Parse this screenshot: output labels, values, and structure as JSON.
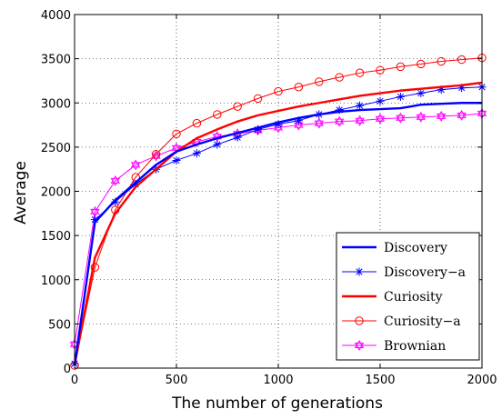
{
  "chart_data": {
    "type": "line",
    "title": "",
    "xlabel": "The number of generations",
    "ylabel": "Average",
    "xlim": [
      0,
      2000
    ],
    "ylim": [
      0,
      4000
    ],
    "xticks": [
      0,
      500,
      1000,
      1500,
      2000
    ],
    "yticks": [
      0,
      500,
      1000,
      1500,
      2000,
      2500,
      3000,
      3500,
      4000
    ],
    "xtick_labels": [
      "0",
      "500",
      "1000",
      "1500",
      "2000"
    ],
    "ytick_labels": [
      "0",
      "500",
      "1000",
      "1500",
      "2000",
      "2500",
      "3000",
      "3500",
      "4000"
    ],
    "grid": true,
    "legend_position": "bottom-right",
    "series": [
      {
        "name": "Discovery",
        "color": "#0000ff",
        "marker": "none",
        "linewidth": 2.4,
        "x": [
          0,
          100,
          200,
          300,
          400,
          500,
          600,
          700,
          800,
          900,
          1000,
          1100,
          1200,
          1300,
          1400,
          1500,
          1600,
          1650,
          1700,
          1800,
          1900,
          2000
        ],
        "y": [
          30,
          1650,
          1900,
          2100,
          2300,
          2450,
          2530,
          2600,
          2660,
          2720,
          2780,
          2830,
          2870,
          2900,
          2920,
          2930,
          2940,
          2960,
          2980,
          2990,
          3000,
          3000
        ]
      },
      {
        "name": "Discovery−a",
        "color": "#0000ff",
        "marker": "star",
        "linewidth": 1,
        "x": [
          0,
          100,
          200,
          300,
          400,
          500,
          600,
          700,
          800,
          900,
          1000,
          1100,
          1200,
          1300,
          1400,
          1500,
          1600,
          1700,
          1800,
          1900,
          2000
        ],
        "y": [
          50,
          1680,
          1880,
          2080,
          2250,
          2350,
          2430,
          2530,
          2610,
          2700,
          2760,
          2800,
          2870,
          2920,
          2970,
          3020,
          3070,
          3110,
          3150,
          3170,
          3180
        ]
      },
      {
        "name": "Curiosity",
        "color": "#ff0000",
        "marker": "none",
        "linewidth": 2.4,
        "x": [
          0,
          100,
          200,
          300,
          400,
          500,
          600,
          700,
          800,
          900,
          1000,
          1100,
          1200,
          1300,
          1400,
          1500,
          1600,
          1700,
          1800,
          1900,
          2000
        ],
        "y": [
          30,
          1250,
          1750,
          2050,
          2250,
          2450,
          2600,
          2700,
          2790,
          2860,
          2910,
          2960,
          3000,
          3040,
          3080,
          3110,
          3140,
          3160,
          3180,
          3200,
          3230
        ]
      },
      {
        "name": "Curiosity−a",
        "color": "#ff0000",
        "marker": "circle",
        "linewidth": 1,
        "x": [
          0,
          100,
          200,
          300,
          400,
          500,
          600,
          700,
          800,
          900,
          1000,
          1100,
          1200,
          1300,
          1400,
          1500,
          1600,
          1700,
          1800,
          1900,
          2000
        ],
        "y": [
          30,
          1140,
          1790,
          2160,
          2420,
          2650,
          2770,
          2870,
          2960,
          3050,
          3130,
          3180,
          3240,
          3290,
          3340,
          3370,
          3410,
          3440,
          3470,
          3490,
          3510
        ]
      },
      {
        "name": "Brownian",
        "color": "#ff00ff",
        "marker": "hexagram",
        "linewidth": 1,
        "x": [
          0,
          100,
          200,
          300,
          400,
          500,
          600,
          700,
          800,
          900,
          1000,
          1100,
          1200,
          1300,
          1400,
          1500,
          1600,
          1700,
          1800,
          1900,
          2000
        ],
        "y": [
          270,
          1770,
          2120,
          2300,
          2400,
          2490,
          2560,
          2620,
          2650,
          2690,
          2720,
          2750,
          2770,
          2790,
          2800,
          2820,
          2830,
          2840,
          2850,
          2860,
          2880
        ]
      }
    ]
  }
}
